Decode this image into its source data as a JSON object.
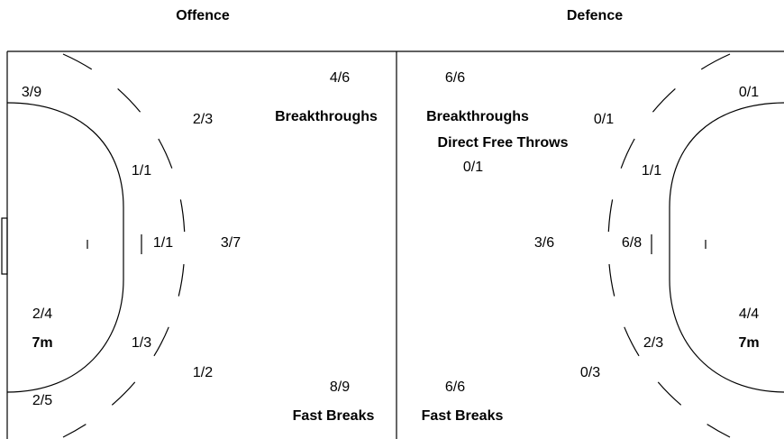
{
  "offence": {
    "title": "Offence",
    "labels": [
      "3/9",
      "4/6",
      "2/3",
      "Breakthroughs",
      "1/1",
      "1/1",
      "3/7",
      "2/4",
      "7m",
      "1/3",
      "1/2",
      "8/9",
      "2/5",
      "Fast Breaks"
    ]
  },
  "defence": {
    "title": "Defence",
    "labels": [
      "6/6",
      "0/1",
      "Breakthroughs",
      "0/1",
      "Direct Free Throws",
      "0/1",
      "1/1",
      "3/6",
      "6/8",
      "4/4",
      "7m",
      "2/3",
      "0/3",
      "6/6",
      "Fast Breaks"
    ]
  }
}
